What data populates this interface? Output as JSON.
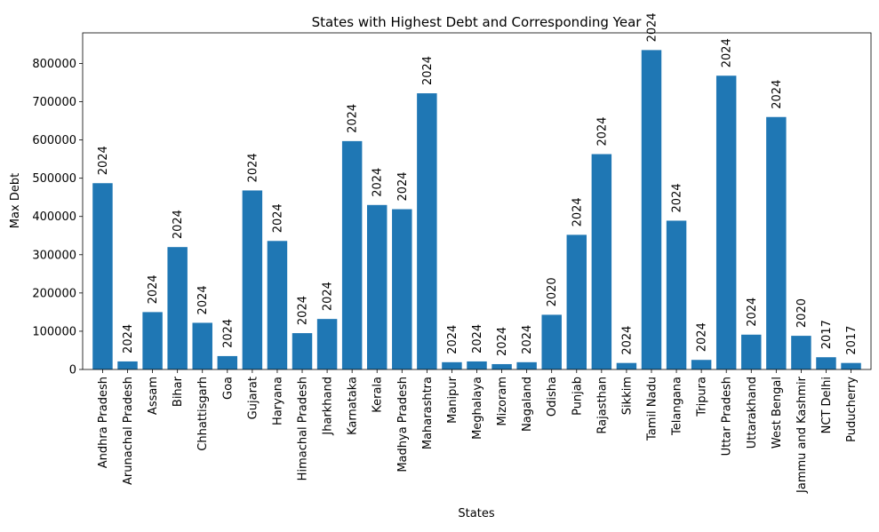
{
  "chart_data": {
    "type": "bar",
    "title": "States with Highest Debt and Corresponding Year",
    "xlabel": "States",
    "ylabel": "Max Debt",
    "ylim": [
      0,
      880000
    ],
    "yticks": [
      0,
      100000,
      200000,
      300000,
      400000,
      500000,
      600000,
      700000,
      800000
    ],
    "grid": false,
    "bar_color": "#1f77b4",
    "categories": [
      "Andhra Pradesh",
      "Arunachal Pradesh",
      "Assam",
      "Bihar",
      "Chhattisgarh",
      "Goa",
      "Gujarat",
      "Haryana",
      "Himachal Pradesh",
      "Jharkhand",
      "Karnataka",
      "Kerala",
      "Madhya Pradesh",
      "Maharashtra",
      "Manipur",
      "Meghalaya",
      "Mizoram",
      "Nagaland",
      "Odisha",
      "Punjab",
      "Rajasthan",
      "Sikkim",
      "Tamil Nadu",
      "Telangana",
      "Tripura",
      "Uttar Pradesh",
      "Uttarakhand",
      "West Bengal",
      "Jammu and Kashmir",
      "NCT Delhi",
      "Puducherry"
    ],
    "values": [
      487000,
      21000,
      150000,
      320000,
      122000,
      35000,
      468000,
      336000,
      95000,
      132000,
      597000,
      430000,
      419000,
      722000,
      19000,
      21000,
      14000,
      19000,
      143000,
      352000,
      563000,
      17000,
      835000,
      389000,
      25000,
      768000,
      91000,
      660000,
      88000,
      32000,
      17000
    ],
    "bar_labels": [
      "2024",
      "2024",
      "2024",
      "2024",
      "2024",
      "2024",
      "2024",
      "2024",
      "2024",
      "2024",
      "2024",
      "2024",
      "2024",
      "2024",
      "2024",
      "2024",
      "2024",
      "2024",
      "2020",
      "2024",
      "2024",
      "2024",
      "2024",
      "2024",
      "2024",
      "2024",
      "2024",
      "2024",
      "2020",
      "2017",
      "2017"
    ]
  }
}
